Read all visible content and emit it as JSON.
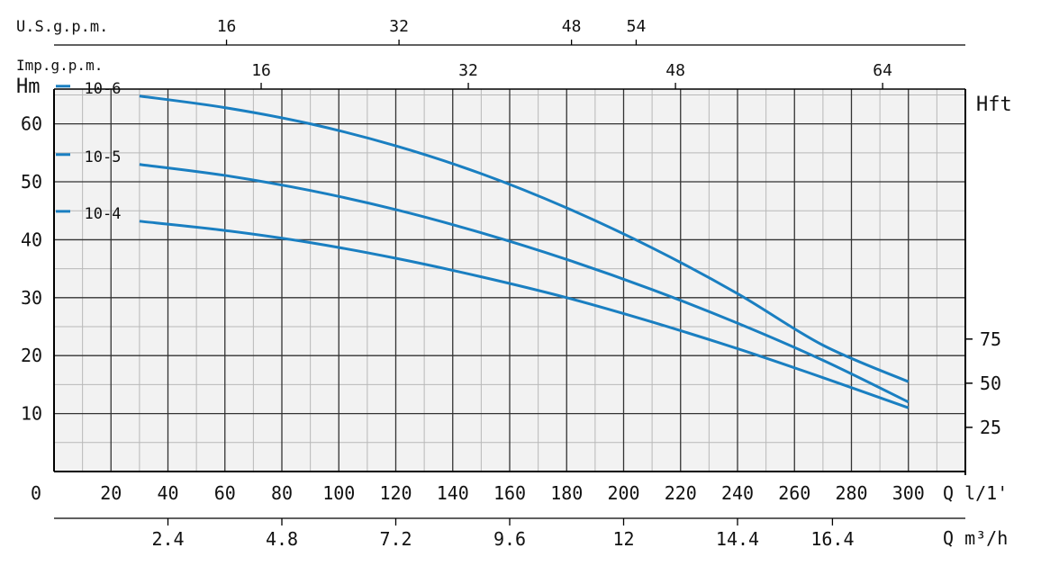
{
  "chart_data": {
    "type": "line",
    "title": "",
    "colors": {
      "series": "#1a7fc1",
      "grid": "#333333",
      "plot_bg": "#f2f2f2",
      "text": "#111111"
    },
    "grid": true,
    "x": {
      "unit_label": "Q l/1'",
      "ticks": [
        "0",
        "20",
        "40",
        "60",
        "80",
        "100",
        "120",
        "140",
        "160",
        "180",
        "200",
        "220",
        "240",
        "260",
        "280",
        "300"
      ],
      "range": [
        0,
        320
      ]
    },
    "y_left": {
      "label": "Hm",
      "ticks": [
        "10",
        "20",
        "30",
        "40",
        "50",
        "60"
      ],
      "range": [
        0,
        66
      ]
    },
    "y_right": {
      "label": "Hft",
      "ticks": [
        "25",
        "50",
        "75"
      ]
    },
    "top_axis_us": {
      "label": "U.S.g.p.m.",
      "ticks": [
        "16",
        "32",
        "48",
        "54"
      ]
    },
    "top_axis_imp": {
      "label": "Imp.g.p.m.",
      "ticks": [
        "16",
        "32",
        "48",
        "64"
      ]
    },
    "bottom_axis_m3h": {
      "label": "Q m³/h",
      "ticks": [
        "2.4",
        "4.8",
        "7.2",
        "9.6",
        "12",
        "14.4",
        "16.4"
      ]
    },
    "series": [
      {
        "name": "10-6",
        "x": [
          30,
          60,
          90,
          120,
          150,
          180,
          210,
          240,
          270,
          300
        ],
        "y": [
          64.8,
          62.8,
          60,
          56.2,
          51.4,
          45.5,
          38.6,
          30.7,
          21.8,
          15.5
        ]
      },
      {
        "name": "10-5",
        "x": [
          30,
          60,
          90,
          120,
          150,
          180,
          210,
          240,
          270,
          300
        ],
        "y": [
          53,
          51.1,
          48.5,
          45.2,
          41.2,
          36.6,
          31.4,
          25.6,
          19.2,
          12
        ]
      },
      {
        "name": "10-4",
        "x": [
          30,
          60,
          90,
          120,
          150,
          180,
          210,
          240,
          270,
          300
        ],
        "y": [
          43.2,
          41.6,
          39.5,
          36.8,
          33.6,
          30,
          25.8,
          21.2,
          16.2,
          11
        ]
      }
    ]
  }
}
